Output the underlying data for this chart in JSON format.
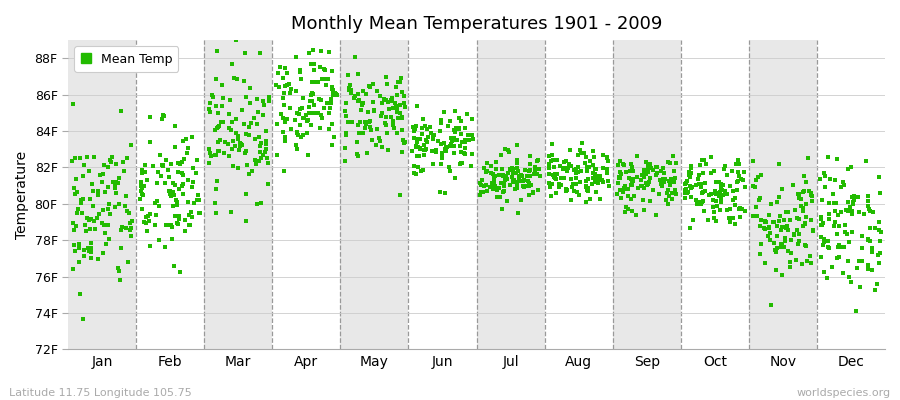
{
  "title": "Monthly Mean Temperatures 1901 - 2009",
  "ylabel": "Temperature",
  "bottom_left": "Latitude 11.75 Longitude 105.75",
  "bottom_right": "worldspecies.org",
  "legend_label": "Mean Temp",
  "dot_color": "#22bb00",
  "bg_color": "#ffffff",
  "band_color": "#e8e8e8",
  "ylim": [
    72,
    89
  ],
  "yticks": [
    72,
    74,
    76,
    78,
    80,
    82,
    84,
    86,
    88
  ],
  "ytick_labels": [
    "72F",
    "74F",
    "76F",
    "78F",
    "80F",
    "82F",
    "84F",
    "86F",
    "88F"
  ],
  "months": [
    "Jan",
    "Feb",
    "Mar",
    "Apr",
    "May",
    "Jun",
    "Jul",
    "Aug",
    "Sep",
    "Oct",
    "Nov",
    "Dec"
  ],
  "month_mean_temps_F": [
    79.5,
    80.5,
    84.0,
    85.8,
    85.0,
    83.2,
    81.5,
    81.5,
    81.2,
    80.8,
    79.0,
    78.8
  ],
  "month_std_temps_F": [
    2.2,
    2.0,
    1.8,
    1.5,
    1.3,
    0.9,
    0.7,
    0.7,
    0.8,
    1.0,
    1.6,
    1.8
  ],
  "n_years": 109,
  "seed": 42
}
